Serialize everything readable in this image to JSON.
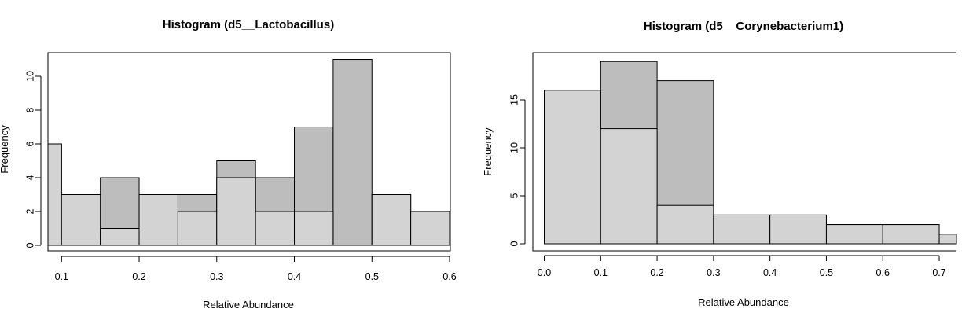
{
  "chart_data": [
    {
      "type": "bar",
      "title": "Histogram (d5__Lactobacillus)",
      "xlabel": "Relative Abundance",
      "ylabel": "Frequency",
      "xlim": [
        0.08,
        0.6
      ],
      "ylim": [
        0,
        11
      ],
      "x_ticks": [
        "0.1",
        "0.2",
        "0.3",
        "0.4",
        "0.5",
        "0.6"
      ],
      "y_ticks": [
        "0",
        "2",
        "4",
        "6",
        "8",
        "10"
      ],
      "bin_edges": [
        0.05,
        0.1,
        0.15,
        0.2,
        0.25,
        0.3,
        0.35,
        0.4,
        0.45,
        0.5,
        0.55,
        0.6
      ],
      "series": [
        {
          "fill": "#bdbdbd",
          "values": [
            6,
            3,
            4,
            3,
            3,
            5,
            4,
            7,
            11,
            3,
            2
          ]
        },
        {
          "fill": "#d3d3d3",
          "values": [
            6,
            3,
            1,
            3,
            2,
            4,
            2,
            2,
            0,
            3,
            2
          ]
        }
      ],
      "grid": false
    },
    {
      "type": "bar",
      "title": "Histogram (d5__Corynebacterium1)",
      "xlabel": "Relative Abundance",
      "ylabel": "Frequency",
      "xlim": [
        -0.02,
        0.73
      ],
      "ylim": [
        0,
        19
      ],
      "x_ticks": [
        "0.0",
        "0.1",
        "0.2",
        "0.3",
        "0.4",
        "0.5",
        "0.6",
        "0.7"
      ],
      "y_ticks": [
        "0",
        "5",
        "10",
        "15"
      ],
      "bin_edges": [
        0.0,
        0.1,
        0.2,
        0.3,
        0.4,
        0.5,
        0.6,
        0.7,
        0.8
      ],
      "series": [
        {
          "fill": "#bdbdbd",
          "values": [
            16,
            19,
            17,
            3,
            3,
            2,
            2,
            1
          ]
        },
        {
          "fill": "#d3d3d3",
          "values": [
            16,
            12,
            4,
            3,
            3,
            2,
            2,
            1
          ]
        }
      ],
      "grid": false
    }
  ]
}
